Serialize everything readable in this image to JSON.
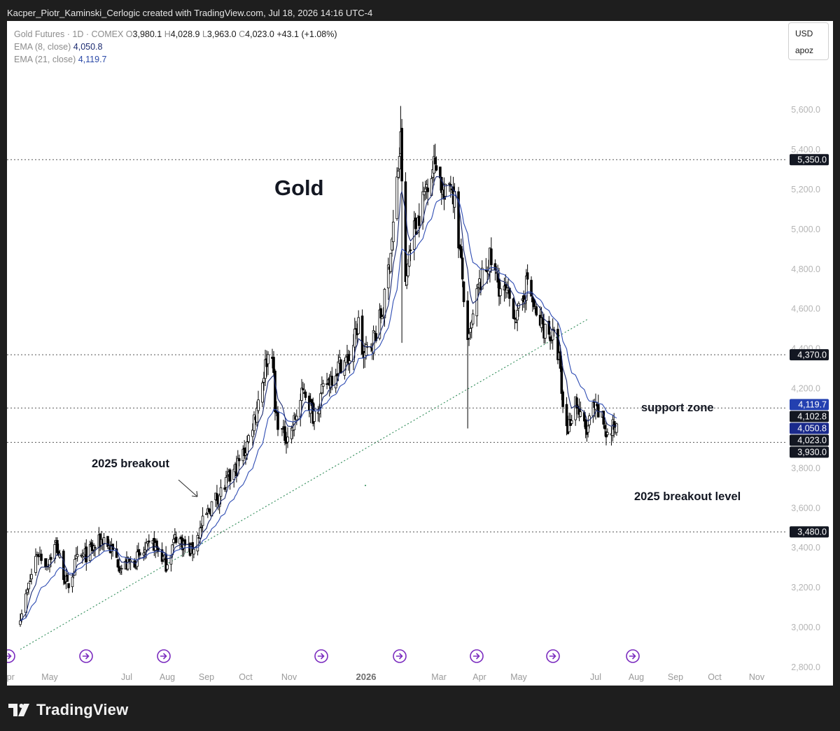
{
  "header": {
    "attribution": "Kacper_Piotr_Kaminski_Cerlogic created with TradingView.com, Jul 18, 2026 14:16 UTC-4"
  },
  "legend": {
    "symbol": "Gold Futures · 1D · COMEX",
    "open_label": "O",
    "open": "3,980.1",
    "high_label": "H",
    "high": "4,028.9",
    "low_label": "L",
    "low": "3,963.0",
    "close_label": "C",
    "close": "4,023.0",
    "change": "+43.1 (+1.08%)",
    "ema8_label": "EMA (8, close)",
    "ema8_value": "4,050.8",
    "ema21_label": "EMA (21, close)",
    "ema21_value": "4,119.7"
  },
  "currency_box": {
    "currency": "USD",
    "user": "apoz"
  },
  "footer": {
    "brand": "TradingView"
  },
  "colors": {
    "ema8": "#1b2a70",
    "ema21": "#2e4cb3",
    "trendline": "#2e8b57",
    "label_dark": "#131722",
    "label_ema8": "#1a2a8c",
    "label_ema21": "#2340b0",
    "event_icon": "#7b2cbf"
  },
  "chart_data": {
    "type": "candlestick",
    "title": "Gold",
    "y_range": [
      2720,
      5800
    ],
    "y_ticks": [
      "2,800.0",
      "3,000.0",
      "3,200.0",
      "3,400.0",
      "3,600.0",
      "3,800.0",
      "4,000.0",
      "4,200.0",
      "4,400.0",
      "4,600.0",
      "4,800.0",
      "5,000.0",
      "5,200.0",
      "5,400.0",
      "5,600.0"
    ],
    "x_ticks": [
      "Apr",
      "May",
      "Jul",
      "Aug",
      "Sep",
      "Oct",
      "Nov",
      "2026",
      "Mar",
      "Apr",
      "May",
      "Jul",
      "Aug",
      "Sep",
      "Oct",
      "Nov"
    ],
    "bold_x_tick": "2026",
    "horizontal_levels": [
      5350,
      4370,
      4102.8,
      3930,
      3480
    ],
    "price_labels": [
      {
        "text": "5,350.0",
        "value": 5350,
        "style": "dark"
      },
      {
        "text": "4,370.0",
        "value": 4370,
        "style": "dark"
      },
      {
        "text": "4,119.7",
        "value": 4119.7,
        "style": "ema21"
      },
      {
        "text": "4,102.8",
        "value": 4102.8,
        "style": "dark"
      },
      {
        "text": "4,050.8",
        "value": 4050.8,
        "style": "ema8"
      },
      {
        "text": "4,023.0",
        "value": 4023,
        "style": "dark"
      },
      {
        "text": "3,930.0",
        "value": 3930,
        "style": "dark"
      },
      {
        "text": "3,480.0",
        "value": 3480,
        "style": "dark"
      }
    ],
    "annotations": [
      {
        "text": "2025 breakout",
        "anchor": "left-mid"
      },
      {
        "text": "support zone",
        "anchor": "right-mid"
      },
      {
        "text": "2025 breakout level",
        "anchor": "right-low"
      }
    ],
    "trendline": {
      "from": {
        "date": "2025-04-10",
        "price": 2890
      },
      "to": {
        "date": "2026-06-25",
        "price": 4550
      }
    },
    "event_marker_count": 9,
    "ohlc_anchor_closes": [
      [
        "2025-04-10",
        3070
      ],
      [
        "2025-04-14",
        3150
      ],
      [
        "2025-04-22",
        3380
      ],
      [
        "2025-04-29",
        3320
      ],
      [
        "2025-05-06",
        3420
      ],
      [
        "2025-05-15",
        3200
      ],
      [
        "2025-05-22",
        3330
      ],
      [
        "2025-06-02",
        3380
      ],
      [
        "2025-06-13",
        3450
      ],
      [
        "2025-06-27",
        3300
      ],
      [
        "2025-07-08",
        3340
      ],
      [
        "2025-07-22",
        3420
      ],
      [
        "2025-07-31",
        3320
      ],
      [
        "2025-08-08",
        3460
      ],
      [
        "2025-08-20",
        3380
      ],
      [
        "2025-08-29",
        3520
      ],
      [
        "2025-09-05",
        3620
      ],
      [
        "2025-09-12",
        3680
      ],
      [
        "2025-09-23",
        3790
      ],
      [
        "2025-10-01",
        3900
      ],
      [
        "2025-10-08",
        4080
      ],
      [
        "2025-10-16",
        4350
      ],
      [
        "2025-10-20",
        4400
      ],
      [
        "2025-10-22",
        4080
      ],
      [
        "2025-10-28",
        3960
      ],
      [
        "2025-11-03",
        3990
      ],
      [
        "2025-11-13",
        4200
      ],
      [
        "2025-11-20",
        4070
      ],
      [
        "2025-12-01",
        4230
      ],
      [
        "2025-12-12",
        4330
      ],
      [
        "2025-12-19",
        4350
      ],
      [
        "2025-12-26",
        4530
      ],
      [
        "2025-12-30",
        4350
      ],
      [
        "2026-01-08",
        4470
      ],
      [
        "2026-01-15",
        4600
      ],
      [
        "2026-01-22",
        4950
      ],
      [
        "2026-01-29",
        5450
      ],
      [
        "2026-02-02",
        4700
      ],
      [
        "2026-02-06",
        4950
      ],
      [
        "2026-02-12",
        5050
      ],
      [
        "2026-02-20",
        5250
      ],
      [
        "2026-02-27",
        5350
      ],
      [
        "2026-03-05",
        5150
      ],
      [
        "2026-03-10",
        5250
      ],
      [
        "2026-03-13",
        5150
      ],
      [
        "2026-03-19",
        4750
      ],
      [
        "2026-03-23",
        4400
      ],
      [
        "2026-03-31",
        4700
      ],
      [
        "2026-04-09",
        4850
      ],
      [
        "2026-04-17",
        4700
      ],
      [
        "2026-04-24",
        4650
      ],
      [
        "2026-04-30",
        4550
      ],
      [
        "2026-05-08",
        4750
      ],
      [
        "2026-05-15",
        4550
      ],
      [
        "2026-05-22",
        4500
      ],
      [
        "2026-05-29",
        4450
      ],
      [
        "2026-06-02",
        4350
      ],
      [
        "2026-06-05",
        4100
      ],
      [
        "2026-06-09",
        4000
      ],
      [
        "2026-06-15",
        4150
      ],
      [
        "2026-06-19",
        4050
      ],
      [
        "2026-06-24",
        3980
      ],
      [
        "2026-06-29",
        4100
      ],
      [
        "2026-07-06",
        4050
      ],
      [
        "2026-07-10",
        3960
      ],
      [
        "2026-07-17",
        4023
      ]
    ],
    "last_candle": {
      "date": "2026-07-17",
      "open": 3980.1,
      "high": 4028.9,
      "low": 3963.0,
      "close": 4023.0
    },
    "ema8_last": 4050.8,
    "ema21_last": 4119.7
  }
}
